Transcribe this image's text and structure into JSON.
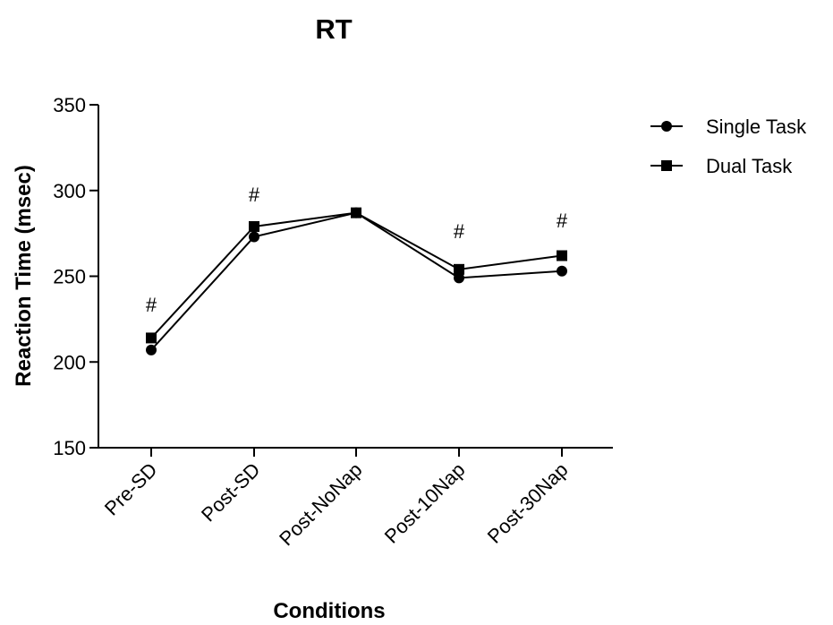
{
  "chart_data": {
    "type": "line",
    "title": "RT",
    "xlabel": "Conditions",
    "ylabel": "Reaction Time (msec)",
    "categories": [
      "Pre-SD",
      "Post-SD",
      "Post-NoNap",
      "Post-10Nap",
      "Post-30Nap"
    ],
    "ylim": [
      150,
      350
    ],
    "yticks": [
      150,
      200,
      250,
      300,
      350
    ],
    "grid": false,
    "legend_position": "top-right",
    "series": [
      {
        "name": "Single Task",
        "marker": "circle",
        "values": [
          207,
          273,
          287,
          249,
          253
        ]
      },
      {
        "name": "Dual Task",
        "marker": "square",
        "values": [
          214,
          279,
          287,
          254,
          262
        ]
      }
    ],
    "annotations": [
      {
        "category": "Pre-SD",
        "text": "#"
      },
      {
        "category": "Post-SD",
        "text": "#"
      },
      {
        "category": "Post-10Nap",
        "text": "#"
      },
      {
        "category": "Post-30Nap",
        "text": "#"
      }
    ],
    "colors": {
      "line": "#000000",
      "marker": "#000000",
      "background": "#ffffff"
    }
  }
}
